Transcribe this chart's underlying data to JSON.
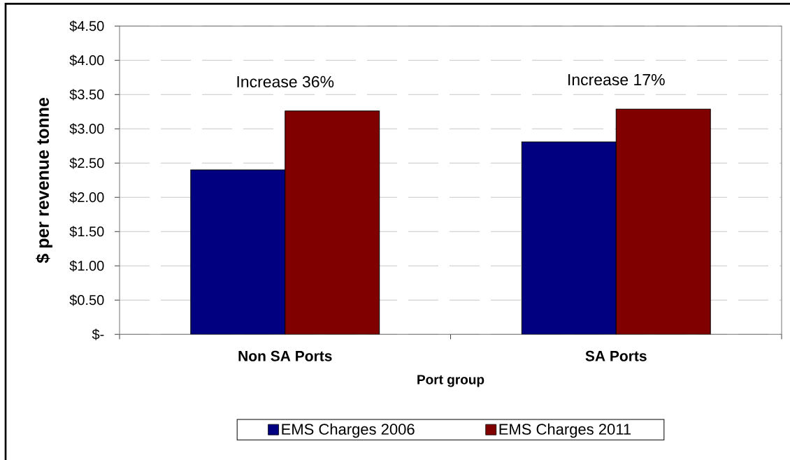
{
  "chart_data": {
    "type": "bar",
    "xlabel": "Port group",
    "ylabel": "$ per revenue tonne",
    "categories": [
      "Non SA Ports",
      "SA Ports"
    ],
    "series": [
      {
        "name": "EMS Charges 2006",
        "color": "#000080",
        "values": [
          2.4,
          2.81
        ]
      },
      {
        "name": "EMS Charges 2011",
        "color": "#800000",
        "values": [
          3.26,
          3.29
        ]
      }
    ],
    "ylim": [
      0,
      4.5
    ],
    "yticks": [
      {
        "value": 0,
        "label": "$-"
      },
      {
        "value": 0.5,
        "label": "$0.50"
      },
      {
        "value": 1,
        "label": "$1.00"
      },
      {
        "value": 1.5,
        "label": "$1.50"
      },
      {
        "value": 2,
        "label": "$2.00"
      },
      {
        "value": 2.5,
        "label": "$2.50"
      },
      {
        "value": 3,
        "label": "$3.00"
      },
      {
        "value": 3.5,
        "label": "$3.50"
      },
      {
        "value": 4,
        "label": "$4.00"
      },
      {
        "value": 4.5,
        "label": "$4.50"
      }
    ],
    "grid": "y",
    "legend": "bottom",
    "annotations": [
      "Increase 36%",
      "Increase 17%"
    ]
  }
}
